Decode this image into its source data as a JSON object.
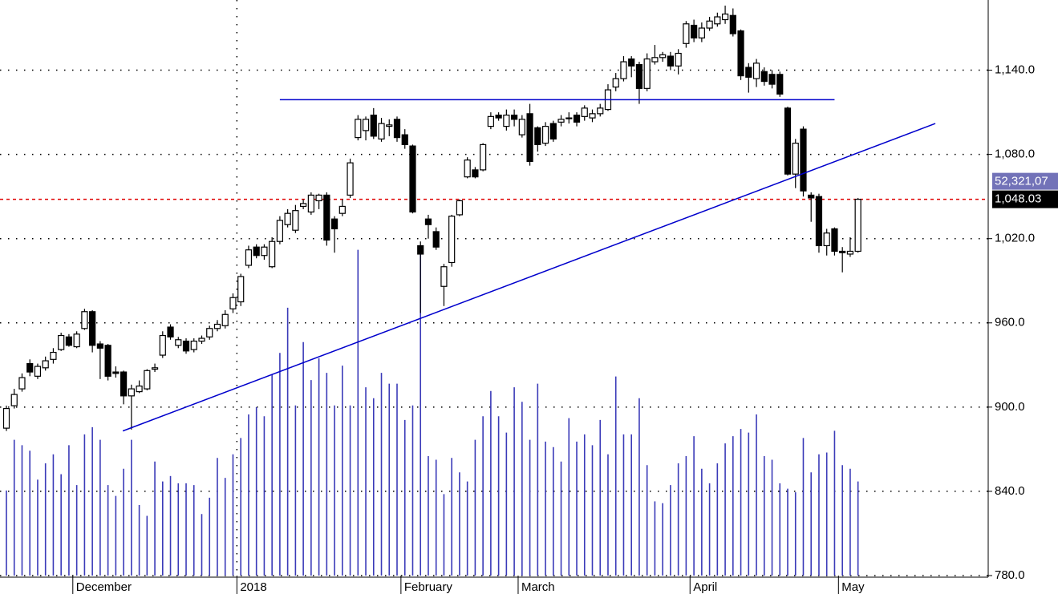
{
  "chart_data": {
    "type": "candlestick",
    "categories": [
      null,
      null,
      null,
      null,
      null,
      null,
      null,
      null,
      null,
      "December",
      null,
      null,
      null,
      null,
      null,
      null,
      null,
      null,
      null,
      null,
      null,
      null,
      null,
      null,
      null,
      null,
      null,
      null,
      null,
      null,
      "2018",
      null,
      null,
      null,
      null,
      null,
      null,
      null,
      null,
      null,
      null,
      null,
      null,
      null,
      null,
      null,
      null,
      null,
      null,
      null,
      null,
      "February",
      null,
      null,
      null,
      null,
      null,
      null,
      null,
      null,
      null,
      null,
      null,
      null,
      null,
      null,
      "March",
      null,
      null,
      null,
      null,
      null,
      null,
      null,
      null,
      null,
      null,
      null,
      null,
      null,
      null,
      null,
      null,
      null,
      null,
      null,
      null,
      null,
      "April",
      null,
      null,
      null,
      null,
      null,
      null,
      null,
      null,
      null,
      null,
      null,
      null,
      null,
      null,
      null,
      null,
      null,
      null,
      "May",
      null,
      null
    ],
    "open": [
      885,
      901,
      913,
      931,
      922,
      928,
      934,
      941,
      950,
      943,
      956,
      968,
      945,
      944,
      925,
      925,
      908,
      911,
      913,
      927,
      937,
      957,
      944,
      947,
      941,
      947,
      950,
      956,
      958,
      970,
      975,
      1001,
      1014,
      1008,
      1000,
      1018,
      1030,
      1026,
      1043,
      1039,
      1047,
      1051,
      1034,
      1038,
      1051,
      1092,
      1097,
      1108,
      1091,
      1100,
      1105,
      1094,
      1086,
      1015,
      1034,
      1025,
      986,
      1003,
      1037,
      1064,
      1069,
      1069,
      1100,
      1108,
      1100,
      1108,
      1094,
      1109,
      1099,
      1088,
      1102,
      1103,
      1106,
      1108,
      1107,
      1106,
      1109,
      1112,
      1128,
      1134,
      1148,
      1144,
      1127,
      1146,
      1149,
      1150,
      1143,
      1159,
      1172,
      1163,
      1170,
      1173,
      1176,
      1179,
      1168,
      1142,
      1134,
      1139,
      1137,
      1137,
      1113,
      1066,
      1098,
      1051,
      1050,
      1015,
      1027,
      1011,
      1009,
      1011
    ],
    "high": [
      901,
      913,
      924,
      934,
      931,
      936,
      942,
      953,
      952,
      954,
      970,
      969,
      947,
      945,
      929,
      926,
      916,
      919,
      927,
      931,
      954,
      959,
      950,
      949,
      949,
      951,
      958,
      962,
      969,
      981,
      995,
      1015,
      1016,
      1016,
      1021,
      1036,
      1041,
      1044,
      1048,
      1053,
      1052,
      1053,
      1036,
      1048,
      1077,
      1108,
      1107,
      1113,
      1106,
      1105,
      1107,
      1098,
      1087,
      1018,
      1037,
      1028,
      1002,
      1037,
      1048,
      1078,
      1071,
      1088,
      1110,
      1110,
      1112,
      1112,
      1108,
      1116,
      1100,
      1103,
      1104,
      1108,
      1110,
      1110,
      1115,
      1112,
      1116,
      1130,
      1138,
      1150,
      1150,
      1146,
      1152,
      1158,
      1153,
      1153,
      1155,
      1175,
      1176,
      1174,
      1178,
      1181,
      1186,
      1184,
      1169,
      1145,
      1148,
      1142,
      1140,
      1139,
      1114,
      1091,
      1100,
      1053,
      1052,
      1027,
      1028,
      1014,
      1021,
      1049
    ],
    "low": [
      883,
      899,
      911,
      922,
      920,
      926,
      931,
      940,
      943,
      942,
      955,
      939,
      920,
      919,
      921,
      902,
      884,
      910,
      912,
      925,
      935,
      948,
      942,
      938,
      939,
      945,
      948,
      954,
      956,
      967,
      972,
      999,
      1006,
      1005,
      999,
      1016,
      1028,
      1024,
      1041,
      1037,
      1041,
      1015,
      1010,
      1036,
      1049,
      1090,
      1090,
      1091,
      1089,
      1093,
      1089,
      1084,
      1038,
      967,
      1020,
      1012,
      972,
      1000,
      1036,
      1063,
      1063,
      1068,
      1098,
      1104,
      1097,
      1100,
      1092,
      1072,
      1082,
      1086,
      1089,
      1100,
      1102,
      1100,
      1104,
      1103,
      1107,
      1111,
      1125,
      1132,
      1135,
      1116,
      1125,
      1144,
      1146,
      1140,
      1137,
      1156,
      1160,
      1160,
      1168,
      1171,
      1173,
      1164,
      1133,
      1124,
      1128,
      1129,
      1127,
      1121,
      1065,
      1056,
      1050,
      1032,
      1010,
      1008,
      1008,
      996,
      1007,
      1010
    ],
    "close": [
      899,
      909,
      921,
      925,
      929,
      933,
      939,
      951,
      944,
      952,
      968,
      944,
      942,
      922,
      924,
      908,
      913,
      915,
      926,
      928,
      951,
      950,
      948,
      940,
      947,
      949,
      956,
      959,
      966,
      978,
      993,
      1012,
      1008,
      1014,
      1018,
      1033,
      1038,
      1040,
      1045,
      1051,
      1051,
      1019,
      1027,
      1043,
      1074,
      1105,
      1105,
      1093,
      1102,
      1101,
      1092,
      1087,
      1039,
      1009,
      1030,
      1014,
      1000,
      1036,
      1047,
      1076,
      1064,
      1087,
      1107,
      1106,
      1108,
      1105,
      1105,
      1075,
      1087,
      1100,
      1091,
      1105,
      1106,
      1103,
      1113,
      1109,
      1113,
      1126,
      1134,
      1146,
      1143,
      1127,
      1148,
      1149,
      1151,
      1143,
      1152,
      1173,
      1163,
      1170,
      1175,
      1178,
      1180,
      1166,
      1136,
      1135,
      1145,
      1132,
      1130,
      1123,
      1066,
      1088,
      1054,
      1049,
      1015,
      1024,
      1011,
      1010,
      1011,
      1048.03
    ],
    "volume": [
      47,
      75,
      72,
      69,
      53,
      62,
      67,
      56,
      72,
      50,
      78,
      82,
      75,
      50,
      44,
      59,
      75,
      39,
      33,
      63,
      52,
      55,
      51,
      51,
      50,
      34,
      43,
      65,
      54,
      67,
      76,
      89,
      93,
      88,
      111,
      123,
      148,
      94,
      129,
      108,
      120,
      112,
      94,
      116,
      94,
      180,
      104,
      98,
      112,
      106,
      106,
      86,
      94,
      178,
      66,
      64,
      45,
      65,
      57,
      52,
      75,
      88,
      102,
      88,
      79,
      104,
      96,
      75,
      106,
      74,
      71,
      63,
      87,
      74,
      78,
      72,
      86,
      67,
      110,
      78,
      78,
      98,
      61,
      41,
      40,
      50,
      62,
      66,
      77,
      59,
      51,
      62,
      73,
      77,
      81,
      79,
      89,
      66,
      64,
      51,
      48,
      46,
      76,
      57,
      67,
      68,
      80,
      61,
      59,
      52
    ],
    "volume_color": "#3a3ab8",
    "y2lim": [
      0,
      318
    ],
    "ylim": [
      780,
      1190
    ],
    "yticks": [
      {
        "value": 780,
        "label": "780.0"
      },
      {
        "value": 840,
        "label": "840.0"
      },
      {
        "value": 900,
        "label": "900.0"
      },
      {
        "value": 960,
        "label": "960.0"
      },
      {
        "value": 1020,
        "label": "1,020.0"
      },
      {
        "value": 1080,
        "label": "1,080.0"
      },
      {
        "value": 1140,
        "label": "1,140.0"
      }
    ],
    "grid": true,
    "last_price": {
      "value": 1048.03,
      "label": "1,048.03"
    },
    "last_volume_label": "52,321,07",
    "trendlines": [
      {
        "x": [
          35,
          106
        ],
        "y": [
          1119,
          1119
        ],
        "color": "#0000cc"
      },
      {
        "x": [
          14.9,
          118.9
        ],
        "y": [
          883,
          1102
        ],
        "color": "#0000cc"
      }
    ]
  }
}
